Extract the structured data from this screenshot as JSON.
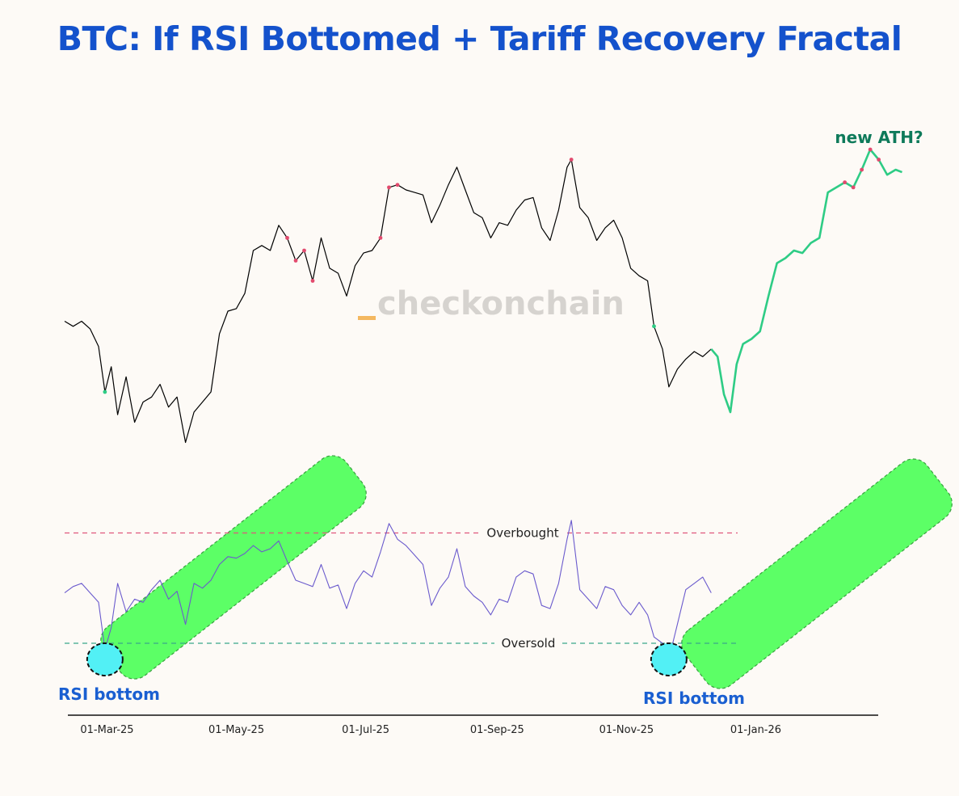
{
  "title": "BTC: If RSI Bottomed + Tariff Recovery Fractal",
  "watermark": "checkonchain",
  "annotations": {
    "ath": "new ATH?",
    "rsi_bottom_1": "RSI bottom",
    "rsi_bottom_2": "RSI bottom"
  },
  "reference_lines": {
    "overbought": "Overbought",
    "oversold": "Oversold"
  },
  "colors": {
    "title": "#1452cc",
    "price": "#000000",
    "projection": "#2ecc85",
    "rsi": "#6a5acd",
    "overbought_line": "#e0567c",
    "oversold_line": "#3aa88a",
    "highlight_box": "#5cff66",
    "bottom_circle": "#52f0f5",
    "ath_label": "#0e7a5a",
    "annotation": "#1a5fd1"
  },
  "chart_data": {
    "type": "line",
    "x_ticks": [
      "01-Mar-25",
      "01-May-25",
      "01-Jul-25",
      "01-Sep-25",
      "01-Nov-25",
      "01-Jan-26"
    ],
    "x_range": [
      "2025-02-09",
      "2026-03-15"
    ],
    "series": [
      {
        "key": "price",
        "points": [
          [
            "2025-02-09",
            0.52
          ],
          [
            "2025-02-13",
            0.5
          ],
          [
            "2025-02-17",
            0.52
          ],
          [
            "2025-02-21",
            0.49
          ],
          [
            "2025-02-25",
            0.42
          ],
          [
            "2025-02-28",
            0.24
          ],
          [
            "2025-03-03",
            0.34
          ],
          [
            "2025-03-06",
            0.15
          ],
          [
            "2025-03-10",
            0.3
          ],
          [
            "2025-03-14",
            0.12
          ],
          [
            "2025-03-18",
            0.2
          ],
          [
            "2025-03-22",
            0.22
          ],
          [
            "2025-03-26",
            0.27
          ],
          [
            "2025-03-30",
            0.18
          ],
          [
            "2025-04-03",
            0.22
          ],
          [
            "2025-04-07",
            0.04
          ],
          [
            "2025-04-11",
            0.16
          ],
          [
            "2025-04-15",
            0.2
          ],
          [
            "2025-04-19",
            0.24
          ],
          [
            "2025-04-23",
            0.47
          ],
          [
            "2025-04-27",
            0.56
          ],
          [
            "2025-05-01",
            0.57
          ],
          [
            "2025-05-05",
            0.63
          ],
          [
            "2025-05-09",
            0.8
          ],
          [
            "2025-05-13",
            0.82
          ],
          [
            "2025-05-17",
            0.8
          ],
          [
            "2025-05-21",
            0.9
          ],
          [
            "2025-05-25",
            0.85
          ],
          [
            "2025-05-29",
            0.76
          ],
          [
            "2025-06-02",
            0.8
          ],
          [
            "2025-06-06",
            0.68
          ],
          [
            "2025-06-10",
            0.85
          ],
          [
            "2025-06-14",
            0.73
          ],
          [
            "2025-06-18",
            0.71
          ],
          [
            "2025-06-22",
            0.62
          ],
          [
            "2025-06-26",
            0.74
          ],
          [
            "2025-06-30",
            0.79
          ],
          [
            "2025-07-04",
            0.8
          ],
          [
            "2025-07-08",
            0.85
          ],
          [
            "2025-07-12",
            1.05
          ],
          [
            "2025-07-16",
            1.06
          ],
          [
            "2025-07-20",
            1.04
          ],
          [
            "2025-07-24",
            1.03
          ],
          [
            "2025-07-28",
            1.02
          ],
          [
            "2025-08-01",
            0.91
          ],
          [
            "2025-08-05",
            0.98
          ],
          [
            "2025-08-09",
            1.06
          ],
          [
            "2025-08-13",
            1.13
          ],
          [
            "2025-08-17",
            1.04
          ],
          [
            "2025-08-21",
            0.95
          ],
          [
            "2025-08-25",
            0.93
          ],
          [
            "2025-08-29",
            0.85
          ],
          [
            "2025-09-02",
            0.91
          ],
          [
            "2025-09-06",
            0.9
          ],
          [
            "2025-09-10",
            0.96
          ],
          [
            "2025-09-14",
            1.0
          ],
          [
            "2025-09-18",
            1.01
          ],
          [
            "2025-09-22",
            0.89
          ],
          [
            "2025-09-26",
            0.84
          ],
          [
            "2025-09-30",
            0.96
          ],
          [
            "2025-10-04",
            1.13
          ],
          [
            "2025-10-06",
            1.16
          ],
          [
            "2025-10-10",
            0.97
          ],
          [
            "2025-10-14",
            0.93
          ],
          [
            "2025-10-18",
            0.84
          ],
          [
            "2025-10-22",
            0.89
          ],
          [
            "2025-10-26",
            0.92
          ],
          [
            "2025-10-30",
            0.85
          ],
          [
            "2025-11-03",
            0.73
          ],
          [
            "2025-11-07",
            0.7
          ],
          [
            "2025-11-11",
            0.68
          ],
          [
            "2025-11-14",
            0.5
          ],
          [
            "2025-11-18",
            0.41
          ],
          [
            "2025-11-21",
            0.26
          ],
          [
            "2025-11-25",
            0.33
          ],
          [
            "2025-11-29",
            0.37
          ],
          [
            "2025-12-03",
            0.4
          ],
          [
            "2025-12-07",
            0.38
          ],
          [
            "2025-12-11",
            0.41
          ]
        ]
      },
      {
        "key": "projection",
        "points": [
          [
            "2025-12-11",
            0.41
          ],
          [
            "2025-12-14",
            0.38
          ],
          [
            "2025-12-17",
            0.23
          ],
          [
            "2025-12-20",
            0.16
          ],
          [
            "2025-12-23",
            0.35
          ],
          [
            "2025-12-26",
            0.43
          ],
          [
            "2025-12-30",
            0.45
          ],
          [
            "2026-01-03",
            0.48
          ],
          [
            "2026-01-07",
            0.62
          ],
          [
            "2026-01-11",
            0.75
          ],
          [
            "2026-01-15",
            0.77
          ],
          [
            "2026-01-19",
            0.8
          ],
          [
            "2026-01-23",
            0.79
          ],
          [
            "2026-01-27",
            0.83
          ],
          [
            "2026-01-31",
            0.85
          ],
          [
            "2026-02-04",
            1.03
          ],
          [
            "2026-02-08",
            1.05
          ],
          [
            "2026-02-12",
            1.07
          ],
          [
            "2026-02-16",
            1.05
          ],
          [
            "2026-02-20",
            1.12
          ],
          [
            "2026-02-24",
            1.2
          ],
          [
            "2026-02-28",
            1.16
          ],
          [
            "2026-03-04",
            1.1
          ],
          [
            "2026-03-08",
            1.12
          ],
          [
            "2026-03-11",
            1.11
          ]
        ]
      },
      {
        "key": "rsi",
        "points": [
          [
            "2025-02-09",
            52
          ],
          [
            "2025-02-13",
            56
          ],
          [
            "2025-02-17",
            58
          ],
          [
            "2025-02-21",
            52
          ],
          [
            "2025-02-25",
            46
          ],
          [
            "2025-02-28",
            16
          ],
          [
            "2025-03-03",
            30
          ],
          [
            "2025-03-06",
            58
          ],
          [
            "2025-03-10",
            40
          ],
          [
            "2025-03-14",
            48
          ],
          [
            "2025-03-18",
            46
          ],
          [
            "2025-03-22",
            54
          ],
          [
            "2025-03-26",
            60
          ],
          [
            "2025-03-30",
            48
          ],
          [
            "2025-04-03",
            53
          ],
          [
            "2025-04-07",
            32
          ],
          [
            "2025-04-11",
            58
          ],
          [
            "2025-04-15",
            55
          ],
          [
            "2025-04-19",
            60
          ],
          [
            "2025-04-23",
            70
          ],
          [
            "2025-04-27",
            75
          ],
          [
            "2025-05-01",
            74
          ],
          [
            "2025-05-05",
            77
          ],
          [
            "2025-05-09",
            82
          ],
          [
            "2025-05-13",
            78
          ],
          [
            "2025-05-17",
            80
          ],
          [
            "2025-05-21",
            85
          ],
          [
            "2025-05-25",
            72
          ],
          [
            "2025-05-29",
            60
          ],
          [
            "2025-06-02",
            58
          ],
          [
            "2025-06-06",
            56
          ],
          [
            "2025-06-10",
            70
          ],
          [
            "2025-06-14",
            55
          ],
          [
            "2025-06-18",
            57
          ],
          [
            "2025-06-22",
            42
          ],
          [
            "2025-06-26",
            58
          ],
          [
            "2025-06-30",
            66
          ],
          [
            "2025-07-04",
            62
          ],
          [
            "2025-07-08",
            78
          ],
          [
            "2025-07-12",
            96
          ],
          [
            "2025-07-16",
            86
          ],
          [
            "2025-07-20",
            82
          ],
          [
            "2025-07-24",
            76
          ],
          [
            "2025-07-28",
            70
          ],
          [
            "2025-08-01",
            44
          ],
          [
            "2025-08-05",
            55
          ],
          [
            "2025-08-09",
            62
          ],
          [
            "2025-08-13",
            80
          ],
          [
            "2025-08-17",
            56
          ],
          [
            "2025-08-21",
            50
          ],
          [
            "2025-08-25",
            46
          ],
          [
            "2025-08-29",
            38
          ],
          [
            "2025-09-02",
            48
          ],
          [
            "2025-09-06",
            46
          ],
          [
            "2025-09-10",
            62
          ],
          [
            "2025-09-14",
            66
          ],
          [
            "2025-09-18",
            64
          ],
          [
            "2025-09-22",
            44
          ],
          [
            "2025-09-26",
            42
          ],
          [
            "2025-09-30",
            58
          ],
          [
            "2025-10-04",
            86
          ],
          [
            "2025-10-06",
            98
          ],
          [
            "2025-10-10",
            54
          ],
          [
            "2025-10-14",
            48
          ],
          [
            "2025-10-18",
            42
          ],
          [
            "2025-10-22",
            56
          ],
          [
            "2025-10-26",
            54
          ],
          [
            "2025-10-30",
            44
          ],
          [
            "2025-11-03",
            38
          ],
          [
            "2025-11-07",
            46
          ],
          [
            "2025-11-11",
            38
          ],
          [
            "2025-11-14",
            24
          ],
          [
            "2025-11-18",
            20
          ],
          [
            "2025-11-21",
            10
          ],
          [
            "2025-11-25",
            32
          ],
          [
            "2025-11-29",
            54
          ],
          [
            "2025-12-03",
            58
          ],
          [
            "2025-12-07",
            62
          ],
          [
            "2025-12-11",
            52
          ]
        ]
      }
    ],
    "overbought_level": 90,
    "oversold_level": 20
  }
}
